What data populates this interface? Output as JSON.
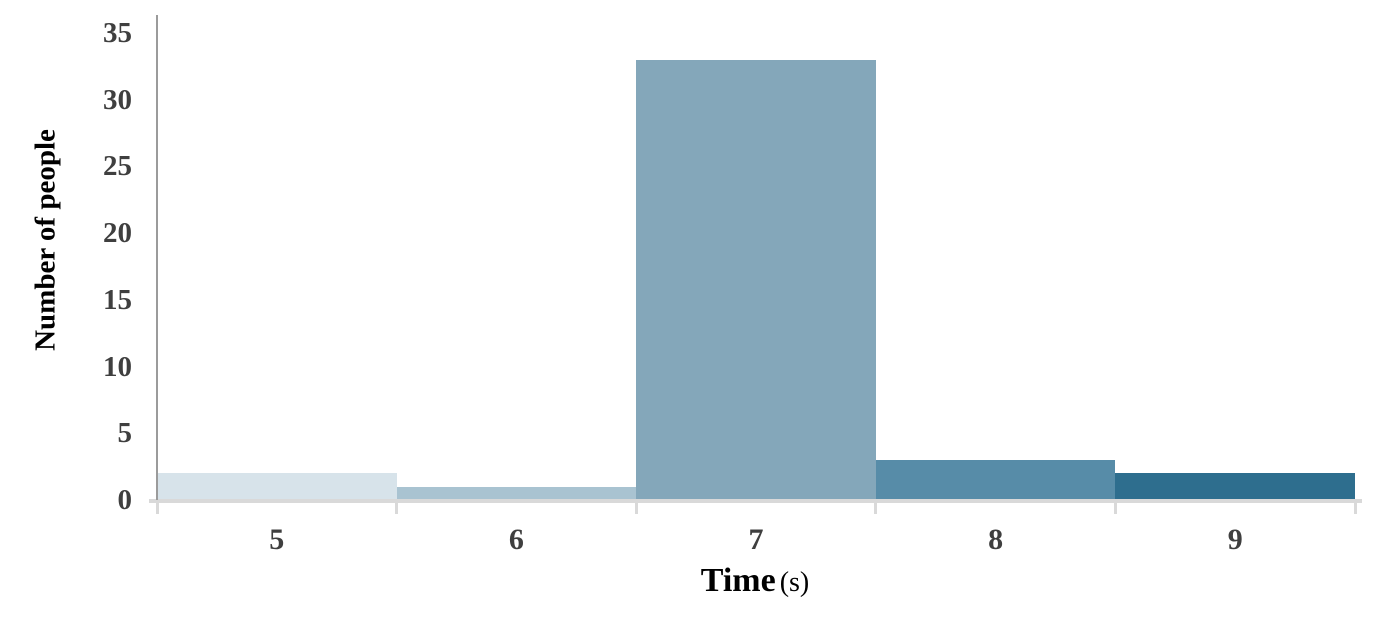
{
  "chart_data": {
    "type": "bar",
    "title": "",
    "categories": [
      "5",
      "6",
      "7",
      "8",
      "9"
    ],
    "values": [
      2,
      1,
      33,
      3,
      2
    ],
    "bar_colors": [
      "#d7e3ea",
      "#a9c3d1",
      "#84a7ba",
      "#578ca8",
      "#2e6e8e"
    ],
    "xlabel": "Time",
    "xlabel_unit": "(s)",
    "ylabel": "Number of people",
    "ylim": [
      0,
      35
    ],
    "yticks": [
      0,
      5,
      10,
      15,
      20,
      25,
      30,
      35
    ],
    "grid": "off",
    "legend": "none",
    "bar_gap": 0
  },
  "style": {
    "y_axis_line_color": "#9b9b9b",
    "x_axis_line_color": "#d9d9d9",
    "tick_label_color": "#3f3f3f",
    "axis_title_color": "#000000",
    "background": "#ffffff"
  }
}
